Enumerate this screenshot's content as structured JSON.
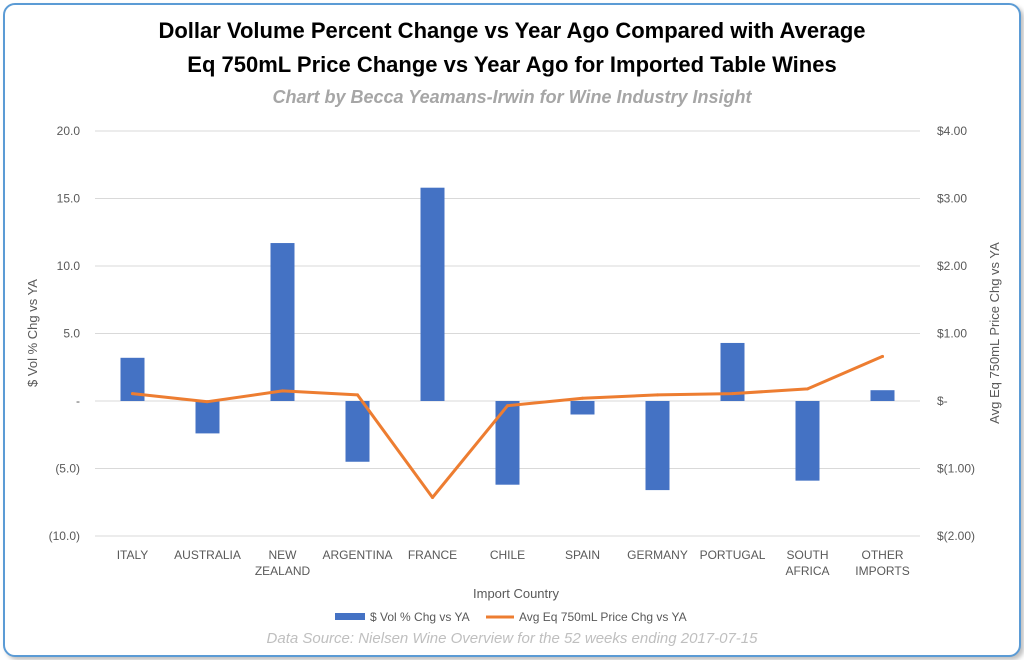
{
  "chart_data": {
    "type": "bar",
    "title_line1": "Dollar Volume Percent Change vs Year Ago Compared with Average",
    "title_line2": "Eq 750mL Price Change vs Year Ago for Imported Table Wines",
    "subtitle": "Chart by Becca Yeamans-Irwin for Wine Industry Insight",
    "source": "Data Source: Nielsen Wine Overview for the 52 weeks ending 2017-07-15",
    "xlabel": "Import Country",
    "ylabel_left": "$ Vol % Chg vs YA",
    "ylabel_right": "Avg Eq 750mL Price Chg vs YA",
    "categories": [
      [
        "ITALY"
      ],
      [
        "AUSTRALIA"
      ],
      [
        "NEW",
        "ZEALAND"
      ],
      [
        "ARGENTINA"
      ],
      [
        "FRANCE"
      ],
      [
        "CHILE"
      ],
      [
        "SPAIN"
      ],
      [
        "GERMANY"
      ],
      [
        "PORTUGAL"
      ],
      [
        "SOUTH",
        "AFRICA"
      ],
      [
        "OTHER",
        "IMPORTS"
      ]
    ],
    "ylim_left": [
      -10,
      20
    ],
    "yticks_left": [
      20,
      15,
      10,
      5,
      0,
      -5,
      -10
    ],
    "yticklabels_left": [
      "20.0",
      "15.0",
      "10.0",
      "5.0",
      "-",
      "(5.0)",
      "(10.0)"
    ],
    "ylim_right": [
      -2,
      4
    ],
    "yticks_right": [
      4,
      3,
      2,
      1,
      0,
      -1,
      -2
    ],
    "yticklabels_right": [
      "$4.00",
      "$3.00",
      "$2.00",
      "$1.00",
      "$-",
      "$(1.00)",
      "$(2.00)"
    ],
    "series": [
      {
        "name": "$ Vol % Chg vs YA",
        "type": "bar",
        "axis": "left",
        "color": "#4472c4",
        "values": [
          3.2,
          -2.4,
          11.7,
          -4.5,
          15.8,
          -6.2,
          -1.0,
          -6.6,
          4.3,
          -5.9,
          0.8
        ]
      },
      {
        "name": "Avg Eq 750mL Price Chg vs YA",
        "type": "line",
        "axis": "right",
        "color": "#ed7d31",
        "values": [
          0.11,
          -0.01,
          0.15,
          0.09,
          -1.43,
          -0.07,
          0.04,
          0.09,
          0.11,
          0.18,
          0.66
        ]
      }
    ],
    "gridlines": true,
    "legend_position": "bottom"
  }
}
